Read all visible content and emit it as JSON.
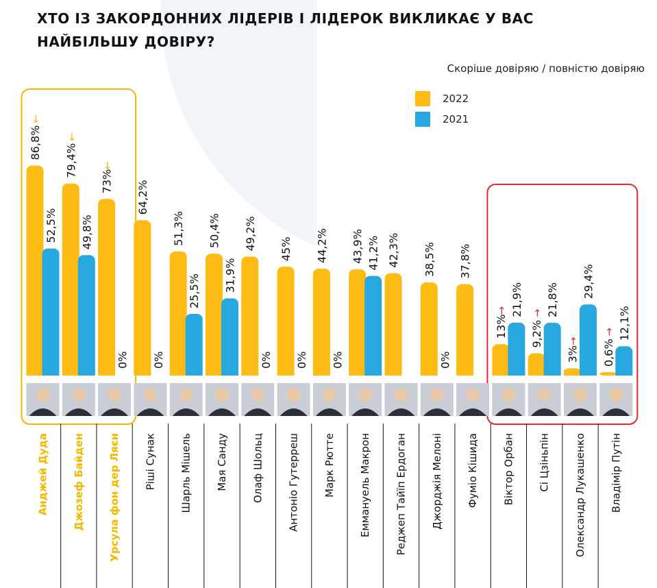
{
  "title": "ХТО ІЗ ЗАКОРДОННИХ ЛІДЕРІВ І ЛІДЕРОК ВИКЛИКАЄ У ВАС НАЙБІЛЬШУ ДОВІРУ?",
  "subtitle": "Скоріше довіряю / повністю довіряю",
  "colors": {
    "2022": "#FDBB13",
    "2021": "#29A8E0",
    "highlight_good": "#F5B800",
    "highlight_bad": "#E0262F",
    "arrow_up": "#F5B800",
    "arrow_down": "#E0262F"
  },
  "legend": [
    {
      "label": "2022",
      "color": "#FDBB13"
    },
    {
      "label": "2021",
      "color": "#29A8E0"
    }
  ],
  "chart_data": {
    "type": "bar",
    "categories": [
      "Анджей Дуда",
      "Джозеф Байден",
      "Урсула фон дер Ляєн",
      "Ріші Сунак",
      "Шарль Мішель",
      "Мая Санду",
      "Олаф Шольц",
      "Антоніо Гутерреш",
      "Марк Рютте",
      "Еммануель Макрон",
      "Реджеп Тайїп Ердоган",
      "Джорджія Мелоні",
      "Фуміо Кішида",
      "Віктор Орбан",
      "Сі Цзіньпін",
      "Олександр Лукашенко",
      "Владімір Путін"
    ],
    "series": [
      {
        "name": "2022",
        "values": [
          86.8,
          79.4,
          73,
          64.2,
          51.3,
          50.4,
          49.2,
          45,
          44.2,
          43.9,
          42.3,
          38.5,
          37.8,
          13,
          9.2,
          3,
          0.6
        ],
        "labels": [
          "86,8%",
          "79,4%",
          "73%",
          "64,2%",
          "51,3%",
          "50,4%",
          "49,2%",
          "45%",
          "44,2%",
          "43,9%",
          "42,3%",
          "38,5%",
          "37,8%",
          "13%",
          "9,2%",
          "3%",
          "0,6%"
        ]
      },
      {
        "name": "2021",
        "values": [
          52.5,
          49.8,
          0,
          0,
          25.5,
          31.9,
          0,
          0,
          0,
          41.2,
          0,
          0,
          0,
          21.9,
          21.8,
          29.4,
          12.1
        ],
        "labels": [
          "52,5%",
          "49,8%",
          "0%",
          "0%",
          "25,5%",
          "31,9%",
          "0%",
          "0%",
          "0%",
          "41,2%",
          "",
          "0%",
          "",
          "21,9%",
          "21,8%",
          "29,4%",
          "12,1%"
        ]
      }
    ],
    "highlight_good": [
      "Анджей Дуда",
      "Джозеф Байден",
      "Урсула фон дер Ляєн"
    ],
    "highlight_bad": [
      "Віктор Орбан",
      "Сі Цзіньпін",
      "Олександр Лукашенко",
      "Владімір Путін"
    ],
    "trend_arrows": {
      "up": [
        "Анджей Дуда",
        "Джозеф Байден",
        "Урсула фон дер Ляєн"
      ],
      "down": [
        "Віктор Орбан",
        "Сі Цзіньпін",
        "Олександр Лукашенко",
        "Владімір Путін"
      ]
    },
    "arrow_glyphs": {
      "up": "←",
      "down": "→"
    },
    "ylim": [
      0,
      100
    ],
    "grid": false,
    "legend_position": "top-right"
  }
}
